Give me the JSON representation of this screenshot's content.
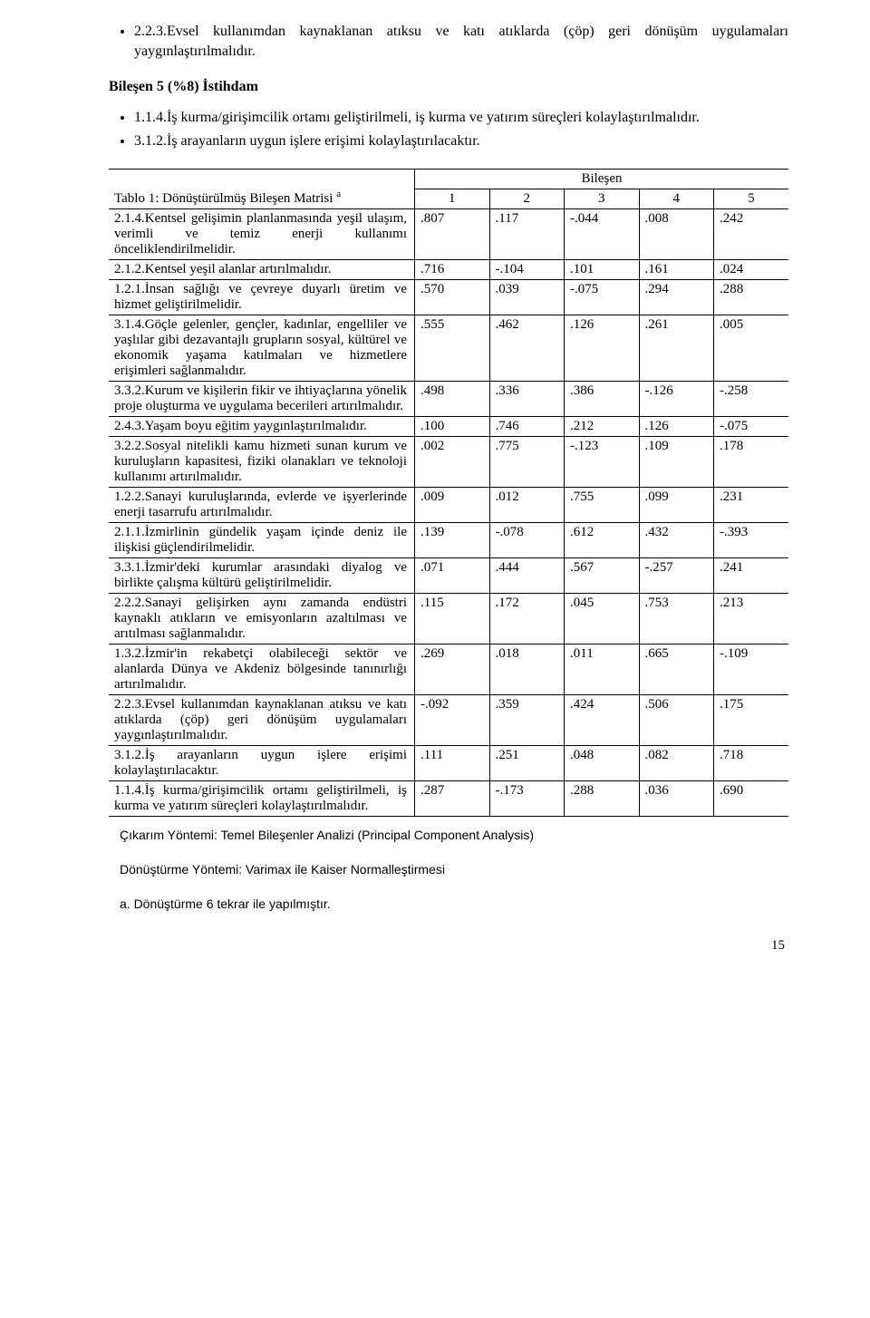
{
  "intro": {
    "bullet1": "2.2.3.Evsel kullanımdan kaynaklanan atıksu ve katı atıklarda (çöp) geri dönüşüm uygulamaları yaygınlaştırılmalıdır."
  },
  "section_heading": "Bileşen 5 (%8) İstihdam",
  "section_bullets": {
    "b1": "1.1.4.İş kurma/girişimcilik ortamı geliştirilmeli, iş kurma ve yatırım süreçleri kolaylaştırılmalıdır.",
    "b2": "3.1.2.İş arayanların uygun işlere erişimi kolaylaştırılacaktır."
  },
  "table": {
    "title_left": "Tablo 1: Dönüştürülmüş Bileşen Matrisi ",
    "title_sup": "a",
    "header_center": "Bileşen",
    "col_nums": [
      "1",
      "2",
      "3",
      "4",
      "5"
    ],
    "rows": [
      {
        "label": "2.1.4.Kentsel gelişimin planlanmasında yeşil ulaşım, verimli ve temiz enerji kullanımı önceliklendirilmelidir.",
        "c": [
          ".807",
          ".117",
          "-.044",
          ".008",
          ".242"
        ]
      },
      {
        "label": "2.1.2.Kentsel yeşil alanlar artırılmalıdır.",
        "c": [
          ".716",
          "-.104",
          ".101",
          ".161",
          ".024"
        ]
      },
      {
        "label": "1.2.1.İnsan sağlığı ve çevreye duyarlı üretim ve hizmet geliştirilmelidir.",
        "c": [
          ".570",
          ".039",
          "-.075",
          ".294",
          ".288"
        ]
      },
      {
        "label": "3.1.4.Göçle gelenler, gençler, kadınlar, engelliler ve yaşlılar gibi dezavantajlı grupların sosyal, kültürel ve ekonomik yaşama katılmaları ve hizmetlere erişimleri sağlanmalıdır.",
        "c": [
          ".555",
          ".462",
          ".126",
          ".261",
          ".005"
        ]
      },
      {
        "label": "3.3.2.Kurum ve kişilerin fikir ve ihtiyaçlarına yönelik proje oluşturma ve uygulama becerileri artırılmalıdır.",
        "c": [
          ".498",
          ".336",
          ".386",
          "-.126",
          "-.258"
        ]
      },
      {
        "label": "2.4.3.Yaşam boyu eğitim yaygınlaştırılmalıdır.",
        "c": [
          ".100",
          ".746",
          ".212",
          ".126",
          "-.075"
        ]
      },
      {
        "label": "3.2.2.Sosyal nitelikli kamu hizmeti sunan kurum ve kuruluşların kapasitesi, fiziki olanakları ve teknoloji kullanımı artırılmalıdır.",
        "c": [
          ".002",
          ".775",
          "-.123",
          ".109",
          ".178"
        ]
      },
      {
        "label": "1.2.2.Sanayi kuruluşlarında, evlerde ve işyerlerinde enerji tasarrufu artırılmalıdır.",
        "c": [
          ".009",
          ".012",
          ".755",
          ".099",
          ".231"
        ]
      },
      {
        "label": "2.1.1.İzmirlinin gündelik yaşam içinde deniz ile ilişkisi güçlendirilmelidir.",
        "c": [
          ".139",
          "-.078",
          ".612",
          ".432",
          "-.393"
        ]
      },
      {
        "label": "3.3.1.İzmir'deki kurumlar arasındaki diyalog ve birlikte çalışma kültürü geliştirilmelidir.",
        "c": [
          ".071",
          ".444",
          ".567",
          "-.257",
          ".241"
        ]
      },
      {
        "label": "2.2.2.Sanayi gelişirken aynı zamanda endüstri kaynaklı atıkların ve emisyonların azaltılması ve arıtılması sağlanmalıdır.",
        "c": [
          ".115",
          ".172",
          ".045",
          ".753",
          ".213"
        ]
      },
      {
        "label": "1.3.2.İzmir'in rekabetçi olabileceği sektör ve alanlarda Dünya ve Akdeniz bölgesinde tanınırlığı artırılmalıdır.",
        "c": [
          ".269",
          ".018",
          ".011",
          ".665",
          "-.109"
        ]
      },
      {
        "label": "2.2.3.Evsel kullanımdan kaynaklanan atıksu ve katı atıklarda (çöp) geri dönüşüm uygulamaları yaygınlaştırılmalıdır.",
        "c": [
          "-.092",
          ".359",
          ".424",
          ".506",
          ".175"
        ]
      },
      {
        "label": "3.1.2.İş arayanların uygun işlere erişimi kolaylaştırılacaktır.",
        "c": [
          ".111",
          ".251",
          ".048",
          ".082",
          ".718"
        ]
      },
      {
        "label": "1.1.4.İş kurma/girişimcilik ortamı geliştirilmeli, iş kurma ve yatırım süreçleri kolaylaştırılmalıdır.",
        "c": [
          ".287",
          "-.173",
          ".288",
          ".036",
          ".690"
        ]
      }
    ]
  },
  "footnotes": {
    "n1": "Çıkarım Yöntemi: Temel Bileşenler Analizi (Principal Component Analysis)",
    "n2": "Dönüştürme Yöntemi: Varimax ile Kaiser Normalleştirmesi",
    "n3": "a. Dönüştürme 6 tekrar ile yapılmıştır."
  },
  "page_number": "15"
}
